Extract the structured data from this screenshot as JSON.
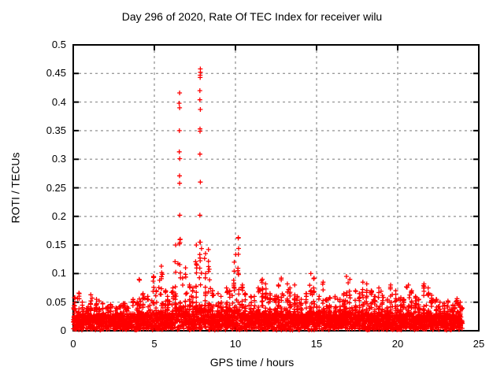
{
  "figure": {
    "title": "Day 296 of 2020, Rate Of TEC Index for receiver wilu"
  },
  "chart_data": {
    "type": "scatter",
    "title": "Day 296 of 2020, Rate Of TEC Index for receiver wilu",
    "xlabel": "GPS time / hours",
    "ylabel": "ROTI / TECUs",
    "xlim": [
      0,
      25
    ],
    "ylim": [
      0,
      0.5
    ],
    "x_ticks": [
      0,
      5,
      10,
      15,
      20,
      25
    ],
    "x_tick_labels": [
      "0",
      "5",
      "10",
      "15",
      "20",
      "25"
    ],
    "y_ticks": [
      0,
      0.05,
      0.1,
      0.15,
      0.2,
      0.25,
      0.3,
      0.35,
      0.4,
      0.45,
      0.5
    ],
    "y_tick_labels": [
      "0",
      "0.05",
      "0.1",
      "0.15",
      "0.2",
      "0.25",
      "0.3",
      "0.35",
      "0.4",
      "0.45",
      "0.5"
    ],
    "grid": true,
    "legend": false,
    "marker": "plus",
    "marker_color": "#ff0000",
    "grid_color": "#9c9c9c",
    "border_color": "#000000",
    "data_hour_range": [
      0,
      24
    ],
    "density_envelope": {
      "description": "max ROTI of dense scatter per bin",
      "bin_hours": 0.25,
      "start_hour": 0,
      "max_roti": [
        0.058,
        0.066,
        0.05,
        0.042,
        0.063,
        0.055,
        0.052,
        0.048,
        0.042,
        0.046,
        0.04,
        0.044,
        0.048,
        0.042,
        0.055,
        0.05,
        0.09,
        0.065,
        0.06,
        0.095,
        0.07,
        0.113,
        0.07,
        0.06,
        0.075,
        0.15,
        0.16,
        0.11,
        0.08,
        0.075,
        0.15,
        0.155,
        0.135,
        0.142,
        0.07,
        0.065,
        0.06,
        0.075,
        0.07,
        0.12,
        0.163,
        0.08,
        0.065,
        0.06,
        0.06,
        0.075,
        0.09,
        0.082,
        0.065,
        0.06,
        0.08,
        0.092,
        0.082,
        0.075,
        0.08,
        0.06,
        0.055,
        0.065,
        0.1,
        0.092,
        0.06,
        0.085,
        0.055,
        0.058,
        0.06,
        0.055,
        0.065,
        0.095,
        0.09,
        0.07,
        0.065,
        0.085,
        0.082,
        0.07,
        0.06,
        0.075,
        0.062,
        0.055,
        0.08,
        0.07,
        0.058,
        0.055,
        0.08,
        0.07,
        0.06,
        0.055,
        0.082,
        0.075,
        0.062,
        0.055,
        0.05,
        0.048,
        0.052,
        0.045,
        0.056,
        0.05
      ]
    },
    "outlier_columns": [
      {
        "x": 6.55,
        "values": [
          0.416,
          0.398,
          0.39,
          0.35,
          0.313,
          0.301,
          0.271,
          0.258,
          0.202,
          0.152
        ]
      },
      {
        "x": 7.82,
        "values": [
          0.458,
          0.452,
          0.447,
          0.443,
          0.42,
          0.404,
          0.387,
          0.353,
          0.349,
          0.309,
          0.26,
          0.202,
          0.155
        ]
      }
    ]
  }
}
